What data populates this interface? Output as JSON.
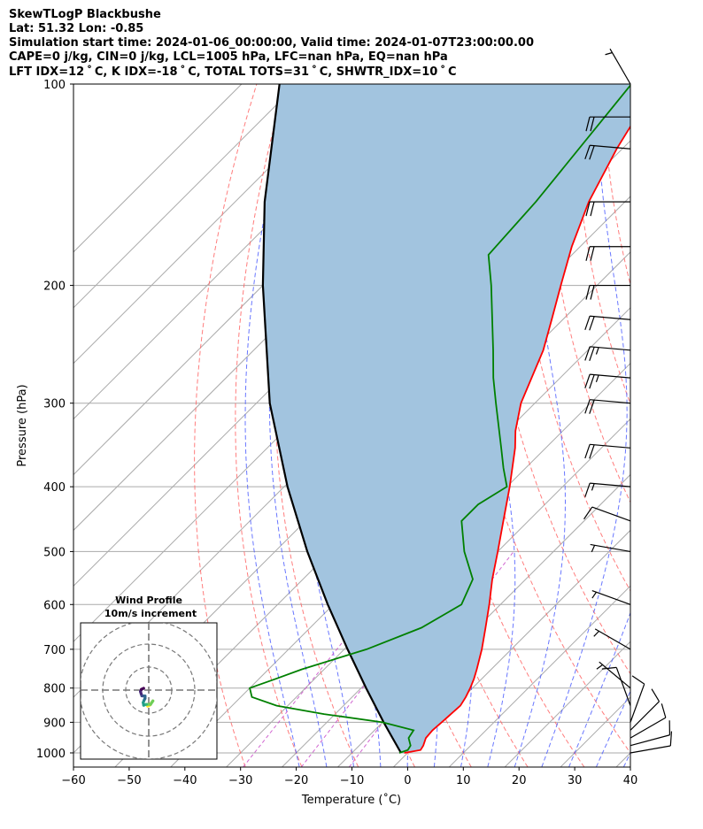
{
  "header": {
    "line1": "SkewTLogP Blackbushe",
    "line2": "Lat: 51.32   Lon: -0.85",
    "line3": "Simulation start time: 2024-01-06_00:00:00, Valid time: 2024-01-07T23:00:00.00",
    "line4": "CAPE=0 j/kg, CIN=0 j/kg, LCL=1005 hPa, LFC=nan hPa, EQ=nan hPa",
    "line5": "LFT IDX=12 ˚ C, K IDX=-18 ˚ C, TOTAL TOTS=31 ˚ C, SHWTR_IDX=10 ˚ C"
  },
  "colors": {
    "temperature": "#ff0000",
    "dewpoint": "#008000",
    "parcel": "#000000",
    "cape_fill": "#a2c4df",
    "dry_adiabats": "#ff6666",
    "moist_adiabats": "#4455ff",
    "mixing_ratio": "#cc55cc",
    "isotherms": "#aaaaaa"
  },
  "chart_data": [
    {
      "type": "line",
      "subtype": "skew-T log-P",
      "xlabel": "Temperature (˚C)",
      "ylabel": "Pressure (hPa)",
      "xlim": [
        -60,
        40
      ],
      "ylim": [
        1050,
        100
      ],
      "y_scale": "log",
      "x_ticks": [
        -60,
        -50,
        -40,
        -30,
        -20,
        -10,
        0,
        10,
        20,
        30,
        40
      ],
      "y_ticks": [
        1000,
        900,
        800,
        700,
        600,
        500,
        400,
        300,
        200,
        100
      ],
      "grid": true,
      "series": [
        {
          "key": "temperature",
          "points": [
            [
              1000,
              -0.6
            ],
            [
              990,
              1.8
            ],
            [
              975,
              1.5
            ],
            [
              950,
              0.6
            ],
            [
              925,
              0.4
            ],
            [
              900,
              0.6
            ],
            [
              875,
              0.8
            ],
            [
              850,
              1.0
            ],
            [
              825,
              0.4
            ],
            [
              800,
              -0.4
            ],
            [
              775,
              -1.4
            ],
            [
              750,
              -2.6
            ],
            [
              700,
              -5.3
            ],
            [
              650,
              -8.5
            ],
            [
              600,
              -12
            ],
            [
              550,
              -16
            ],
            [
              500,
              -20
            ],
            [
              450,
              -24.5
            ],
            [
              400,
              -29.5
            ],
            [
              350,
              -35.5
            ],
            [
              330,
              -38.5
            ],
            [
              300,
              -42.5
            ],
            [
              250,
              -48
            ],
            [
              225,
              -52
            ],
            [
              200,
              -56.5
            ],
            [
              175,
              -61.5
            ],
            [
              150,
              -66.5
            ],
            [
              125,
              -71
            ],
            [
              100,
              -75.5
            ]
          ]
        },
        {
          "key": "dewpoint",
          "points": [
            [
              1000,
              -1.5
            ],
            [
              990,
              -0.5
            ],
            [
              975,
              -0.8
            ],
            [
              950,
              -2.5
            ],
            [
              925,
              -3
            ],
            [
              900,
              -10
            ],
            [
              875,
              -22
            ],
            [
              850,
              -32
            ],
            [
              825,
              -38
            ],
            [
              800,
              -40
            ],
            [
              775,
              -37
            ],
            [
              750,
              -34
            ],
            [
              700,
              -26
            ],
            [
              650,
              -20
            ],
            [
              600,
              -17
            ],
            [
              550,
              -19.5
            ],
            [
              500,
              -26
            ],
            [
              450,
              -32
            ],
            [
              425,
              -32
            ],
            [
              400,
              -30
            ],
            [
              375,
              -34
            ],
            [
              350,
              -38
            ],
            [
              300,
              -47
            ],
            [
              275,
              -52
            ],
            [
              250,
              -57
            ],
            [
              200,
              -69
            ],
            [
              180,
              -75
            ],
            [
              150,
              -76
            ],
            [
              100,
              -80
            ]
          ]
        },
        {
          "key": "parcel",
          "points": [
            [
              1000,
              -1.2
            ],
            [
              900,
              -9.8
            ],
            [
              800,
              -19.1
            ],
            [
              700,
              -29.4
            ],
            [
              600,
              -41
            ],
            [
              500,
              -54.2
            ],
            [
              400,
              -69.4
            ],
            [
              300,
              -87.6
            ],
            [
              200,
              -110
            ],
            [
              150,
              -124.7
            ],
            [
              100,
              -143.2
            ]
          ]
        }
      ],
      "wind_barbs": [
        {
          "p": 1000,
          "dir": 80,
          "speed": 12
        },
        {
          "p": 975,
          "dir": 75,
          "speed": 14
        },
        {
          "p": 950,
          "dir": 60,
          "speed": 14
        },
        {
          "p": 925,
          "dir": 45,
          "speed": 14
        },
        {
          "p": 900,
          "dir": 20,
          "speed": 10
        },
        {
          "p": 850,
          "dir": 340,
          "speed": 10
        },
        {
          "p": 800,
          "dir": 310,
          "speed": 8
        },
        {
          "p": 700,
          "dir": 300,
          "speed": 9
        },
        {
          "p": 600,
          "dir": 290,
          "speed": 6
        },
        {
          "p": 500,
          "dir": 280,
          "speed": 8
        },
        {
          "p": 450,
          "dir": 290,
          "speed": 12
        },
        {
          "p": 400,
          "dir": 275,
          "speed": 18
        },
        {
          "p": 350,
          "dir": 275,
          "speed": 22
        },
        {
          "p": 300,
          "dir": 275,
          "speed": 24
        },
        {
          "p": 275,
          "dir": 275,
          "speed": 26
        },
        {
          "p": 250,
          "dir": 275,
          "speed": 26
        },
        {
          "p": 225,
          "dir": 275,
          "speed": 24
        },
        {
          "p": 200,
          "dir": 270,
          "speed": 24
        },
        {
          "p": 175,
          "dir": 270,
          "speed": 22
        },
        {
          "p": 150,
          "dir": 270,
          "speed": 22
        },
        {
          "p": 125,
          "dir": 275,
          "speed": 24
        },
        {
          "p": 112,
          "dir": 270,
          "speed": 24
        },
        {
          "p": 100,
          "dir": 330,
          "speed": 8
        }
      ]
    },
    {
      "type": "line",
      "subtype": "hodograph",
      "title": "Wind Profile",
      "subtitle": "10m/s increment",
      "rings": [
        10,
        20,
        30
      ],
      "points": [
        [
          -0.5,
          -7
        ],
        [
          0.5,
          -6.5
        ],
        [
          1.2,
          -5.5
        ],
        [
          1.8,
          -4.7
        ],
        [
          0.8,
          -6.2
        ],
        [
          -1,
          -6.2
        ],
        [
          -2.2,
          -6.6
        ],
        [
          -2.4,
          -5.4
        ],
        [
          -2,
          -4.4
        ],
        [
          -1.6,
          -3.6
        ],
        [
          -1.6,
          -2.6
        ],
        [
          -3,
          -2.5
        ],
        [
          -3.3,
          -1.6
        ],
        [
          -3.6,
          -0.6
        ],
        [
          -3.2,
          0.3
        ],
        [
          -2.2,
          0.8
        ]
      ]
    }
  ]
}
